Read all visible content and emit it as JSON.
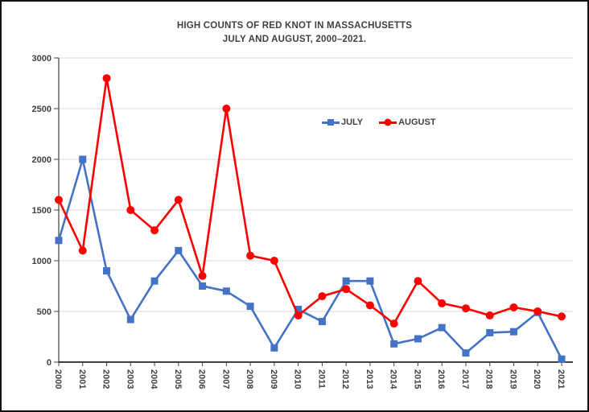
{
  "window": {
    "background": "#FFFFFF",
    "border_color": "#111111"
  },
  "chart_data": {
    "type": "line",
    "title_line1": "HIGH COUNTS OF RED KNOT IN MASSACHUSETTS",
    "title_line2": "JULY AND AUGUST, 2000–2021.",
    "categories": [
      "2000",
      "2001",
      "2002",
      "2003",
      "2004",
      "2005",
      "2006",
      "2007",
      "2008",
      "2009",
      "2010",
      "2011",
      "2012",
      "2013",
      "2014",
      "2015",
      "2016",
      "2017",
      "2018",
      "2019",
      "2020",
      "2021"
    ],
    "series": [
      {
        "name": "JULY",
        "color": "#4472C4",
        "marker": "square",
        "values": [
          1200,
          2000,
          900,
          420,
          800,
          1100,
          750,
          700,
          550,
          140,
          520,
          400,
          800,
          800,
          180,
          230,
          340,
          90,
          290,
          300,
          490,
          30
        ]
      },
      {
        "name": "AUGUST",
        "color": "#FF0000",
        "marker": "circle",
        "values": [
          1600,
          1100,
          2800,
          1500,
          1300,
          1600,
          850,
          2500,
          1050,
          1000,
          460,
          650,
          720,
          560,
          380,
          800,
          580,
          530,
          460,
          540,
          500,
          450
        ]
      }
    ],
    "xlabel": "",
    "ylabel": "",
    "ylim": [
      0,
      3000
    ],
    "y_ticks": [
      0,
      500,
      1000,
      1500,
      2000,
      2500,
      3000
    ],
    "grid": "horizontal",
    "gridline_color": "#D9D9D9",
    "axis_color": "#404040",
    "x_axis_line_color": "#000000",
    "axis_text_color": "#404040",
    "legend_position": "inside-top-right",
    "x_tick_label_rotation_deg": 90
  }
}
